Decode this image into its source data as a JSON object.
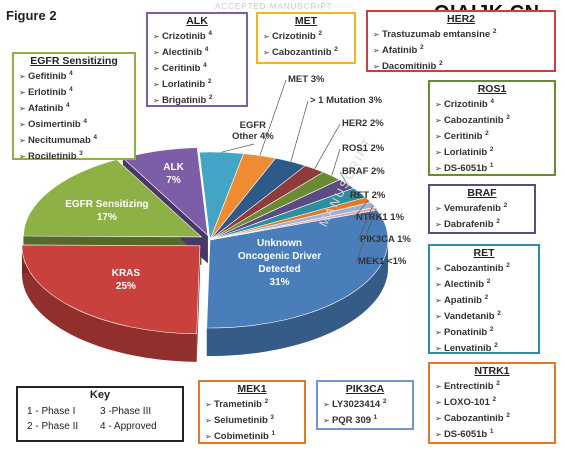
{
  "figure_title": "Figure 2",
  "watermark": "ACCEPTED MANUSCRIPT",
  "watermark_side": "MANUSCRIPT",
  "site_mark": "QIAIJK.CN",
  "colors": {
    "egfr_sensitizing": "#8db145",
    "kras": "#c8413d",
    "unknown": "#4a7ebb",
    "alk": "#7b5ea7",
    "egfr_other": "#43a4c6",
    "met": "#ef8c32",
    "mutation1": "#2d5a8a",
    "her2": "#8f3b3b",
    "ros1": "#6a8a34",
    "braf": "#5c4a82",
    "ret": "#2d8ea0",
    "ntrk1": "#e07a2a",
    "pik3ca": "#9bb3d6",
    "mek1": "#e8a2a0"
  },
  "chart_data": {
    "type": "pie",
    "title": "",
    "slices": [
      {
        "name": "Unknown Oncogenic Driver Detected",
        "label_lines": [
          "Unknown",
          "Oncogenic Driver",
          "Detected",
          "31%"
        ],
        "value": 31,
        "color": "#4a7ebb"
      },
      {
        "name": "KRAS",
        "label_lines": [
          "KRAS",
          "25%"
        ],
        "value": 25,
        "color": "#c8413d"
      },
      {
        "name": "EGFR Sensitizing",
        "label_lines": [
          "EGFR Sensitizing",
          "17%"
        ],
        "value": 17,
        "color": "#8db145"
      },
      {
        "name": "ALK",
        "label_lines": [
          "ALK",
          "7%"
        ],
        "value": 7,
        "color": "#7b5ea7"
      },
      {
        "name": "EGFR Other",
        "label_lines": [
          "EGFR",
          "Other 4%"
        ],
        "value": 4,
        "color": "#43a4c6"
      },
      {
        "name": "MET",
        "label_lines": [
          "MET 3%"
        ],
        "value": 3,
        "color": "#ef8c32"
      },
      {
        "name": "> 1 Mutation",
        "label_lines": [
          "> 1 Mutation 3%"
        ],
        "value": 3,
        "color": "#2d5a8a"
      },
      {
        "name": "HER2",
        "label_lines": [
          "HER2 2%"
        ],
        "value": 2,
        "color": "#8f3b3b"
      },
      {
        "name": "ROS1",
        "label_lines": [
          "ROS1 2%"
        ],
        "value": 2,
        "color": "#6a8a34"
      },
      {
        "name": "BRAF",
        "label_lines": [
          "BRAF 2%"
        ],
        "value": 2,
        "color": "#5c4a82"
      },
      {
        "name": "RET",
        "label_lines": [
          "RET 2%"
        ],
        "value": 2,
        "color": "#2d8ea0"
      },
      {
        "name": "NTRK1",
        "label_lines": [
          "NTRK1 1%"
        ],
        "value": 1,
        "color": "#e07a2a"
      },
      {
        "name": "PIK3CA",
        "label_lines": [
          "PIK3CA 1%"
        ],
        "value": 1,
        "color": "#9bb3d6"
      },
      {
        "name": "MEK1",
        "label_lines": [
          "MEK1 <1%"
        ],
        "value": 0.5,
        "color": "#e8a2a0"
      }
    ]
  },
  "drug_boxes": {
    "egfr": {
      "title": "EGFR Sensitizing",
      "border": "#8db145",
      "items": [
        {
          "name": "Gefitinib",
          "phase": "4"
        },
        {
          "name": "Erlotinib",
          "phase": "4"
        },
        {
          "name": "Afatinib",
          "phase": "4"
        },
        {
          "name": "Osimertinib",
          "phase": "4"
        },
        {
          "name": "Necitumumab",
          "phase": "4"
        },
        {
          "name": "Rociletinib",
          "phase": "3"
        }
      ]
    },
    "alk": {
      "title": "ALK",
      "border": "#7b5ea7",
      "items": [
        {
          "name": "Crizotinib",
          "phase": "4"
        },
        {
          "name": "Alectinib",
          "phase": "4"
        },
        {
          "name": "Ceritinib",
          "phase": "4"
        },
        {
          "name": "Lorlatinib",
          "phase": "2"
        },
        {
          "name": "Brigatinib",
          "phase": "2"
        }
      ]
    },
    "met": {
      "title": "MET",
      "border": "#f3b51f",
      "items": [
        {
          "name": "Crizotinib",
          "phase": "2"
        },
        {
          "name": "Cabozantinib",
          "phase": "2"
        }
      ]
    },
    "her2": {
      "title": "HER2",
      "border": "#c8413d",
      "items": [
        {
          "name": "Trastuzumab emtansine",
          "phase": "2"
        },
        {
          "name": "Afatinib",
          "phase": "2"
        },
        {
          "name": "Dacomitinib",
          "phase": "2"
        }
      ]
    },
    "ros1": {
      "title": "ROS1",
      "border": "#6a8a34",
      "items": [
        {
          "name": "Crizotinib",
          "phase": "4"
        },
        {
          "name": "Cabozantinib",
          "phase": "2"
        },
        {
          "name": "Ceritinib",
          "phase": "2"
        },
        {
          "name": "Lorlatinib",
          "phase": "2"
        },
        {
          "name": "DS-6051b",
          "phase": "1"
        }
      ]
    },
    "braf": {
      "title": "BRAF",
      "border": "#5c4a82",
      "items": [
        {
          "name": "Vemurafenib",
          "phase": "2"
        },
        {
          "name": "Dabrafenib",
          "phase": "2"
        }
      ]
    },
    "ret": {
      "title": "RET",
      "border": "#2d8ea0",
      "items": [
        {
          "name": "Cabozantinib",
          "phase": "2"
        },
        {
          "name": "Alectinib",
          "phase": "2"
        },
        {
          "name": "Apatinib",
          "phase": "2"
        },
        {
          "name": "Vandetanib",
          "phase": "2"
        },
        {
          "name": "Ponatinib",
          "phase": "2"
        },
        {
          "name": "Lenvatinib",
          "phase": "2"
        }
      ]
    },
    "mek1": {
      "title": "MEK1",
      "border": "#e07a2a",
      "items": [
        {
          "name": "Trametinib",
          "phase": "2"
        },
        {
          "name": "Selumetinib",
          "phase": "3"
        },
        {
          "name": "Cobimetinib",
          "phase": "1"
        }
      ]
    },
    "pik3ca": {
      "title": "PIK3CA",
      "border": "#6f9ad1",
      "items": [
        {
          "name": "LY3023414",
          "phase": "2"
        },
        {
          "name": "PQR 309",
          "phase": "1"
        }
      ]
    },
    "ntrk1": {
      "title": "NTRK1",
      "border": "#e07a2a",
      "items": [
        {
          "name": "Entrectinib",
          "phase": "2"
        },
        {
          "name": "LOXO-101",
          "phase": "2"
        },
        {
          "name": "Cabozantinib",
          "phase": "2"
        },
        {
          "name": "DS-6051b",
          "phase": "1"
        }
      ]
    }
  },
  "key": {
    "title": "Key",
    "entries": [
      "1 - Phase I",
      "3 -Phase III",
      "2 - Phase II",
      "4 - Approved"
    ]
  }
}
